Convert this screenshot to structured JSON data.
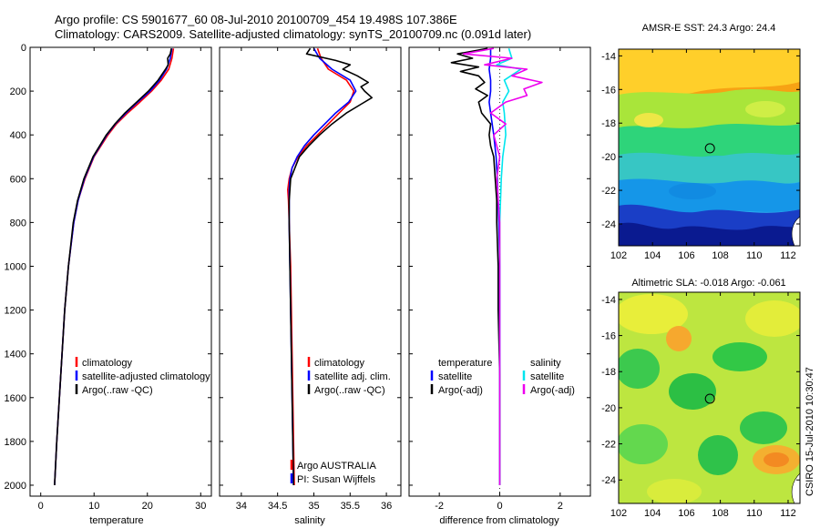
{
  "title": {
    "line1": "Argo profile: CS 5901677_60 08-Jul-2010 20100709_454 19.498S 107.386E",
    "line2": "Climatology: CARS2009. Satellite-adjusted climatology: synTS_20100709.nc (0.091d later)"
  },
  "side_text": "CSIRO 15-Jul-2010 10:30:47",
  "colors": {
    "red": "#ff0000",
    "blue": "#0000ff",
    "black": "#000000",
    "cyan": "#00e5ee",
    "magenta": "#ee00ee"
  },
  "chart_data": [
    {
      "type": "line",
      "id": "temperature",
      "xlabel": "temperature",
      "ylabel": "",
      "xlim": [
        -2,
        32
      ],
      "ylim": [
        2050,
        0
      ],
      "xticks": [
        0,
        10,
        20,
        30
      ],
      "yticks": [
        0,
        200,
        400,
        600,
        800,
        1000,
        1200,
        1400,
        1600,
        1800,
        2000
      ],
      "legend": [
        "climatology",
        "satellite-adjusted climatology",
        "Argo(..raw -QC)"
      ],
      "series": [
        {
          "name": "climatology",
          "color": "red",
          "depth": [
            5,
            50,
            100,
            150,
            200,
            250,
            300,
            350,
            400,
            500,
            600,
            700,
            800,
            1000,
            1200,
            1400,
            1600,
            1800,
            2000
          ],
          "values": [
            24.9,
            24.6,
            24.0,
            22.6,
            20.8,
            18.6,
            16.3,
            14.2,
            12.6,
            10.0,
            8.3,
            7.0,
            6.2,
            5.2,
            4.5,
            4.0,
            3.5,
            3.0,
            2.6
          ]
        },
        {
          "name": "satellite-adjusted climatology",
          "color": "blue",
          "depth": [
            5,
            50,
            100,
            150,
            200,
            250,
            300,
            350,
            400,
            500,
            600,
            700,
            800,
            1000,
            1200,
            1400,
            1600,
            1800,
            2000
          ],
          "values": [
            24.6,
            24.3,
            23.6,
            22.3,
            20.5,
            18.2,
            16.0,
            14.0,
            12.4,
            9.9,
            8.2,
            7.0,
            6.2,
            5.2,
            4.5,
            4.0,
            3.5,
            3.0,
            2.6
          ]
        },
        {
          "name": "Argo(..raw -QC)",
          "color": "black",
          "depth": [
            5,
            30,
            50,
            80,
            100,
            150,
            200,
            250,
            300,
            350,
            400,
            500,
            600,
            700,
            800,
            1000,
            1200,
            1400,
            1600,
            1800,
            2000
          ],
          "values": [
            24.5,
            24.3,
            23.8,
            23.9,
            23.4,
            22.0,
            20.2,
            18.0,
            15.8,
            13.9,
            12.3,
            9.8,
            8.1,
            6.9,
            6.1,
            5.2,
            4.5,
            4.0,
            3.5,
            3.0,
            2.6
          ]
        }
      ]
    },
    {
      "type": "line",
      "id": "salinity",
      "xlabel": "salinity",
      "ylabel": "",
      "xlim": [
        33.7,
        36.2
      ],
      "ylim": [
        2050,
        0
      ],
      "xticks": [
        34,
        34.5,
        35,
        35.5,
        36
      ],
      "yticks": [
        0,
        200,
        400,
        600,
        800,
        1000,
        1200,
        1400,
        1600,
        1800,
        2000
      ],
      "legend": [
        "climatology",
        "satellite adj. clim.",
        "Argo(..raw -QC)"
      ],
      "annotations": [
        "Argo AUSTRALIA",
        "PI: Susan Wijffels"
      ],
      "series": [
        {
          "name": "climatology",
          "color": "red",
          "depth": [
            5,
            50,
            100,
            150,
            200,
            250,
            300,
            350,
            400,
            450,
            500,
            550,
            600,
            650,
            700,
            800,
            1000,
            1200,
            1400,
            1600,
            1800,
            2000
          ],
          "values": [
            35.05,
            35.1,
            35.2,
            35.45,
            35.55,
            35.5,
            35.35,
            35.2,
            35.05,
            34.9,
            34.78,
            34.7,
            34.66,
            34.64,
            34.65,
            34.66,
            34.68,
            34.69,
            34.7,
            34.71,
            34.72,
            34.73
          ]
        },
        {
          "name": "satellite adj. clim.",
          "color": "blue",
          "depth": [
            5,
            50,
            100,
            150,
            200,
            250,
            300,
            350,
            400,
            450,
            500,
            550,
            600,
            650,
            700,
            800,
            1000,
            1200,
            1400,
            1600,
            1800,
            2000
          ],
          "values": [
            35.0,
            35.08,
            35.25,
            35.5,
            35.58,
            35.48,
            35.3,
            35.15,
            35.0,
            34.87,
            34.77,
            34.7,
            34.67,
            34.66,
            34.66,
            34.66,
            34.67,
            34.68,
            34.69,
            34.7,
            34.71,
            34.72
          ]
        },
        {
          "name": "Argo(..raw -QC)",
          "color": "black",
          "depth": [
            5,
            30,
            60,
            80,
            100,
            130,
            160,
            180,
            200,
            230,
            260,
            300,
            350,
            400,
            450,
            500,
            600,
            700,
            800,
            1000,
            1200,
            1400,
            1600,
            1800,
            2000
          ],
          "values": [
            34.95,
            34.9,
            35.3,
            35.5,
            35.4,
            35.6,
            35.75,
            35.65,
            35.7,
            35.8,
            35.65,
            35.45,
            35.25,
            35.08,
            34.93,
            34.8,
            34.68,
            34.66,
            34.66,
            34.67,
            34.68,
            34.69,
            34.7,
            34.71,
            34.72
          ]
        }
      ]
    },
    {
      "type": "line",
      "id": "difference",
      "xlabel": "difference from climatology",
      "ylabel": "",
      "xlim": [
        -3.0,
        3.0
      ],
      "ylim": [
        2050,
        0
      ],
      "xticks": [
        -2,
        0,
        2
      ],
      "yticks": [
        0,
        200,
        400,
        600,
        800,
        1000,
        1200,
        1400,
        1600,
        1800,
        2000
      ],
      "legend_left_title": "temperature",
      "legend_right_title": "salinity",
      "legend": [
        "satellite",
        "Argo(-adj)",
        "satellite",
        "Argo(-adj)"
      ],
      "series": [
        {
          "name": "temperature satellite",
          "color": "blue",
          "depth": [
            5,
            50,
            100,
            150,
            200,
            250,
            300,
            400,
            500,
            600,
            800,
            1000,
            1500,
            2000
          ],
          "values": [
            -0.3,
            -0.3,
            -0.35,
            -0.3,
            -0.3,
            -0.35,
            -0.3,
            -0.2,
            -0.12,
            -0.08,
            -0.03,
            0.0,
            0.0,
            0.0
          ]
        },
        {
          "name": "temperature Argo(-adj)",
          "color": "black",
          "depth": [
            5,
            30,
            50,
            70,
            90,
            110,
            130,
            160,
            190,
            220,
            250,
            300,
            350,
            400,
            450,
            500,
            600,
            700,
            800,
            1000,
            1200,
            1500,
            2000
          ],
          "values": [
            -0.4,
            -1.4,
            -0.9,
            -1.6,
            -0.7,
            -1.3,
            -0.7,
            -0.5,
            -0.8,
            -0.4,
            -0.7,
            -0.6,
            -0.3,
            -0.35,
            -0.3,
            -0.2,
            -0.15,
            -0.1,
            -0.1,
            -0.05,
            -0.05,
            0.0,
            0.0
          ]
        },
        {
          "name": "salinity satellite",
          "color": "cyan",
          "depth": [
            5,
            50,
            80,
            100,
            150,
            200,
            250,
            300,
            400,
            500,
            600,
            800,
            1000,
            1500,
            2000
          ],
          "values": [
            0.3,
            0.4,
            -0.1,
            0.7,
            0.15,
            0.3,
            0.1,
            0.15,
            0.2,
            0.1,
            0.05,
            0.0,
            0.0,
            0.0,
            0.0
          ]
        },
        {
          "name": "salinity Argo(-adj)",
          "color": "magenta",
          "depth": [
            5,
            30,
            50,
            80,
            100,
            130,
            160,
            190,
            220,
            250,
            300,
            350,
            400,
            500,
            600,
            800,
            1000,
            1500,
            2000
          ],
          "values": [
            -0.2,
            -1.2,
            0.4,
            -0.5,
            0.9,
            0.4,
            1.4,
            0.8,
            0.9,
            0.2,
            -0.3,
            0.2,
            -0.2,
            0.0,
            -0.1,
            0.0,
            0.0,
            0.0,
            0.0
          ]
        }
      ]
    },
    {
      "type": "heatmap",
      "id": "sst",
      "title": "AMSR-E SST: 24.3 Argo: 24.4",
      "xlim": [
        102,
        112.7
      ],
      "ylim": [
        -25.3,
        -13.6
      ],
      "xticks": [
        102,
        104,
        106,
        108,
        110,
        112
      ],
      "yticks": [
        -14,
        -16,
        -18,
        -20,
        -22,
        -24
      ],
      "marker": {
        "lon": 107.386,
        "lat": -19.498
      }
    },
    {
      "type": "heatmap",
      "id": "sla",
      "title": "Altimetric SLA: -0.018 Argo: -0.061",
      "xlim": [
        102,
        112.7
      ],
      "ylim": [
        -25.3,
        -13.6
      ],
      "xticks": [
        102,
        104,
        106,
        108,
        110,
        112
      ],
      "yticks": [
        -14,
        -16,
        -18,
        -20,
        -22,
        -24
      ],
      "marker": {
        "lon": 107.386,
        "lat": -19.498
      }
    }
  ]
}
